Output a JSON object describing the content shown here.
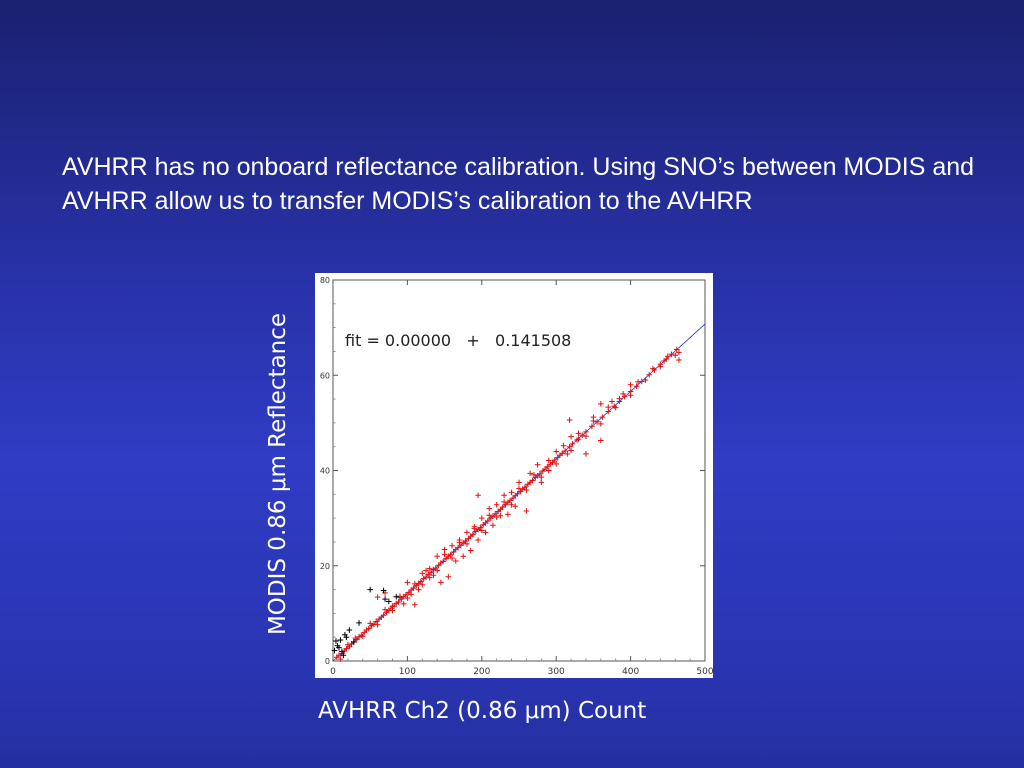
{
  "slide": {
    "text": "AVHRR has no onboard reflectance calibration.  Using SNO’s between MODIS and AVHRR allow us to transfer MODIS’s calibration to the AVHRR"
  },
  "chart_data": {
    "type": "scatter",
    "title": "",
    "xlabel": "AVHRR Ch2 (0.86 μm) Count",
    "ylabel": "MODIS 0.86 μm Reflectance",
    "xlim": [
      0,
      500
    ],
    "ylim": [
      0,
      80
    ],
    "xticks": [
      0,
      100,
      200,
      300,
      400,
      500
    ],
    "yticks": [
      0,
      20,
      40,
      60,
      80
    ],
    "annotation": "fit = 0.00000   +   0.141508",
    "fit_line": {
      "intercept": 0.0,
      "slope": 0.141508,
      "x_range": [
        0,
        500
      ],
      "color": "#2233cc"
    },
    "colors": {
      "points": "#e01010",
      "outliers": "#000000",
      "background": "#ffffff"
    },
    "series": [
      {
        "color": "#e01010",
        "marker": "+",
        "points": [
          [
            5,
            0.8
          ],
          [
            8,
            1.2
          ],
          [
            12,
            1.6
          ],
          [
            15,
            2.1
          ],
          [
            18,
            2.6
          ],
          [
            22,
            3.0
          ],
          [
            25,
            3.6
          ],
          [
            28,
            4.0
          ],
          [
            32,
            4.5
          ],
          [
            35,
            5.1
          ],
          [
            38,
            5.4
          ],
          [
            42,
            6.0
          ],
          [
            45,
            6.5
          ],
          [
            48,
            6.8
          ],
          [
            52,
            7.4
          ],
          [
            55,
            7.7
          ],
          [
            58,
            8.3
          ],
          [
            62,
            8.8
          ],
          [
            65,
            9.2
          ],
          [
            68,
            9.6
          ],
          [
            72,
            10.2
          ],
          [
            75,
            10.6
          ],
          [
            78,
            11.1
          ],
          [
            82,
            11.5
          ],
          [
            85,
            12.1
          ],
          [
            88,
            12.4
          ],
          [
            92,
            13.0
          ],
          [
            95,
            13.5
          ],
          [
            98,
            13.9
          ],
          [
            102,
            14.4
          ],
          [
            105,
            14.9
          ],
          [
            108,
            15.3
          ],
          [
            112,
            15.8
          ],
          [
            115,
            16.3
          ],
          [
            118,
            16.7
          ],
          [
            122,
            17.3
          ],
          [
            125,
            17.6
          ],
          [
            128,
            18.2
          ],
          [
            132,
            18.6
          ],
          [
            135,
            19.2
          ],
          [
            138,
            19.5
          ],
          [
            142,
            20.1
          ],
          [
            145,
            20.6
          ],
          [
            148,
            20.9
          ],
          [
            152,
            21.5
          ],
          [
            155,
            22.0
          ],
          [
            158,
            22.3
          ],
          [
            162,
            22.9
          ],
          [
            165,
            23.4
          ],
          [
            168,
            23.8
          ],
          [
            172,
            24.3
          ],
          [
            175,
            24.8
          ],
          [
            178,
            25.2
          ],
          [
            182,
            25.7
          ],
          [
            185,
            26.2
          ],
          [
            188,
            26.6
          ],
          [
            192,
            27.2
          ],
          [
            195,
            27.6
          ],
          [
            198,
            28.0
          ],
          [
            202,
            28.6
          ],
          [
            205,
            29.0
          ],
          [
            208,
            29.4
          ],
          [
            212,
            30.0
          ],
          [
            215,
            30.4
          ],
          [
            218,
            30.9
          ],
          [
            222,
            31.4
          ],
          [
            225,
            31.8
          ],
          [
            228,
            32.3
          ],
          [
            232,
            32.8
          ],
          [
            235,
            33.3
          ],
          [
            238,
            33.7
          ],
          [
            242,
            34.2
          ],
          [
            245,
            34.7
          ],
          [
            248,
            35.1
          ],
          [
            252,
            35.6
          ],
          [
            255,
            36.1
          ],
          [
            258,
            36.5
          ],
          [
            262,
            37.1
          ],
          [
            265,
            37.5
          ],
          [
            268,
            37.9
          ],
          [
            272,
            38.5
          ],
          [
            275,
            38.9
          ],
          [
            278,
            39.3
          ],
          [
            282,
            39.9
          ],
          [
            285,
            40.3
          ],
          [
            288,
            40.8
          ],
          [
            292,
            41.3
          ],
          [
            295,
            41.7
          ],
          [
            298,
            42.2
          ],
          [
            302,
            42.7
          ],
          [
            305,
            43.2
          ],
          [
            308,
            43.6
          ],
          [
            312,
            44.1
          ],
          [
            318,
            45.0
          ],
          [
            322,
            45.6
          ],
          [
            328,
            46.4
          ],
          [
            335,
            47.4
          ],
          [
            340,
            48.1
          ],
          [
            348,
            49.3
          ],
          [
            355,
            50.2
          ],
          [
            362,
            51.2
          ],
          [
            370,
            52.4
          ],
          [
            378,
            53.5
          ],
          [
            385,
            54.5
          ],
          [
            392,
            55.5
          ],
          [
            400,
            56.6
          ],
          [
            408,
            57.7
          ],
          [
            415,
            58.7
          ],
          [
            425,
            60.1
          ],
          [
            432,
            61.1
          ],
          [
            440,
            62.3
          ],
          [
            448,
            63.4
          ],
          [
            455,
            64.4
          ],
          [
            462,
            65.4
          ],
          [
            465,
            64.8
          ],
          [
            10,
            0.4
          ],
          [
            20,
            3.4
          ],
          [
            30,
            4.8
          ],
          [
            40,
            5.2
          ],
          [
            50,
            7.9
          ],
          [
            60,
            7.6
          ],
          [
            70,
            10.8
          ],
          [
            80,
            10.6
          ],
          [
            90,
            13.6
          ],
          [
            100,
            13.2
          ],
          [
            110,
            16.2
          ],
          [
            120,
            16.0
          ],
          [
            130,
            19.4
          ],
          [
            140,
            19.0
          ],
          [
            150,
            22.4
          ],
          [
            160,
            21.6
          ],
          [
            170,
            24.9
          ],
          [
            180,
            24.6
          ],
          [
            190,
            27.8
          ],
          [
            200,
            27.4
          ],
          [
            210,
            30.6
          ],
          [
            220,
            30.2
          ],
          [
            230,
            33.4
          ],
          [
            240,
            32.8
          ],
          [
            250,
            36.2
          ],
          [
            260,
            35.9
          ],
          [
            270,
            39.1
          ],
          [
            280,
            38.6
          ],
          [
            290,
            42.1
          ],
          [
            300,
            41.4
          ],
          [
            310,
            45.2
          ],
          [
            320,
            44.2
          ],
          [
            330,
            47.8
          ],
          [
            340,
            47.2
          ],
          [
            350,
            50.4
          ],
          [
            360,
            49.8
          ],
          [
            370,
            53.3
          ],
          [
            380,
            53.2
          ],
          [
            390,
            56.1
          ],
          [
            400,
            55.8
          ],
          [
            410,
            58.6
          ],
          [
            420,
            59.0
          ],
          [
            430,
            61.4
          ],
          [
            440,
            61.8
          ],
          [
            450,
            64.0
          ],
          [
            60,
            13.4
          ],
          [
            70,
            14.3
          ],
          [
            80,
            11.5
          ],
          [
            90,
            13.3
          ],
          [
            95,
            12.0
          ],
          [
            100,
            16.5
          ],
          [
            105,
            14.0
          ],
          [
            110,
            11.8
          ],
          [
            115,
            15.0
          ],
          [
            120,
            18.4
          ],
          [
            125,
            19.0
          ],
          [
            130,
            17.5
          ],
          [
            135,
            18.0
          ],
          [
            140,
            22.0
          ],
          [
            145,
            16.5
          ],
          [
            150,
            23.4
          ],
          [
            155,
            17.7
          ],
          [
            160,
            24.2
          ],
          [
            165,
            21.0
          ],
          [
            170,
            25.4
          ],
          [
            175,
            22.0
          ],
          [
            180,
            27.0
          ],
          [
            185,
            23.2
          ],
          [
            190,
            28.2
          ],
          [
            195,
            25.4
          ],
          [
            200,
            30.0
          ],
          [
            205,
            27.0
          ],
          [
            210,
            32.0
          ],
          [
            215,
            28.5
          ],
          [
            220,
            32.8
          ],
          [
            225,
            30.5
          ],
          [
            230,
            34.8
          ],
          [
            235,
            30.8
          ],
          [
            240,
            35.4
          ],
          [
            245,
            32.5
          ],
          [
            250,
            37.5
          ],
          [
            260,
            31.5
          ],
          [
            265,
            39.4
          ],
          [
            275,
            41.2
          ],
          [
            280,
            37.5
          ],
          [
            290,
            40.0
          ],
          [
            300,
            44.0
          ],
          [
            315,
            43.5
          ],
          [
            320,
            47.1
          ],
          [
            330,
            46.6
          ],
          [
            350,
            51.2
          ],
          [
            360,
            54.0
          ],
          [
            375,
            54.5
          ],
          [
            385,
            55.1
          ],
          [
            400,
            58.0
          ],
          [
            445,
            63.0
          ],
          [
            460,
            64.2
          ],
          [
            465,
            63.2
          ],
          [
            318,
            50.6
          ],
          [
            195,
            34.8
          ],
          [
            360,
            46.3
          ],
          [
            340,
            43.5
          ]
        ]
      },
      {
        "color": "#000000",
        "marker": "+",
        "points": [
          [
            2,
            2.2
          ],
          [
            4,
            4.2
          ],
          [
            6,
            3.2
          ],
          [
            8,
            2.8
          ],
          [
            10,
            4.4
          ],
          [
            12,
            2.0
          ],
          [
            14,
            1.2
          ],
          [
            16,
            5.5
          ],
          [
            18,
            5.0
          ],
          [
            22,
            6.5
          ],
          [
            28,
            4.0
          ],
          [
            35,
            8.0
          ],
          [
            50,
            15.0
          ],
          [
            68,
            14.8
          ],
          [
            70,
            13.0
          ],
          [
            75,
            12.5
          ],
          [
            85,
            13.5
          ]
        ]
      }
    ]
  }
}
